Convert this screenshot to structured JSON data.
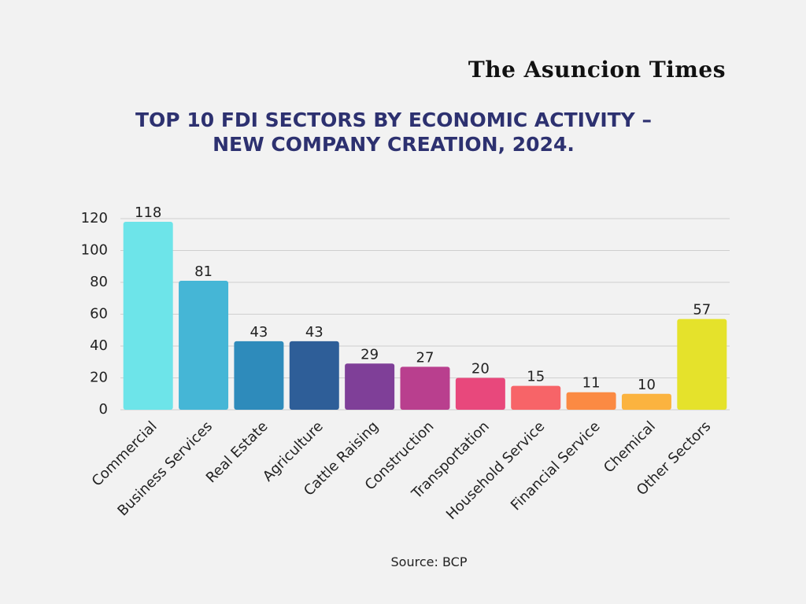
{
  "brand": "The Asuncion Times",
  "chart_data": {
    "type": "bar",
    "title": "TOP 10 FDI SECTORS BY ECONOMIC ACTIVITY – NEW COMPANY CREATION, 2024.",
    "source": "Source: BCP",
    "categories": [
      "Commercial",
      "Business Services",
      "Real Estate",
      "Agriculture",
      "Cattle Raising",
      "Construction",
      "Transportation",
      "Household Service",
      "Financial Service",
      "Chemical",
      "Other Sectors"
    ],
    "values": [
      118,
      81,
      43,
      43,
      29,
      27,
      20,
      15,
      11,
      10,
      57
    ],
    "colors": [
      "#6de4e9",
      "#45b6d6",
      "#2e8bbb",
      "#2e5e98",
      "#7f3f98",
      "#b93f8e",
      "#e8487c",
      "#f76468",
      "#fb8a43",
      "#fbb33f",
      "#e5e22b"
    ],
    "ylim": [
      0,
      120
    ],
    "yticks": [
      0,
      20,
      40,
      60,
      80,
      100,
      120
    ],
    "grid": true
  }
}
